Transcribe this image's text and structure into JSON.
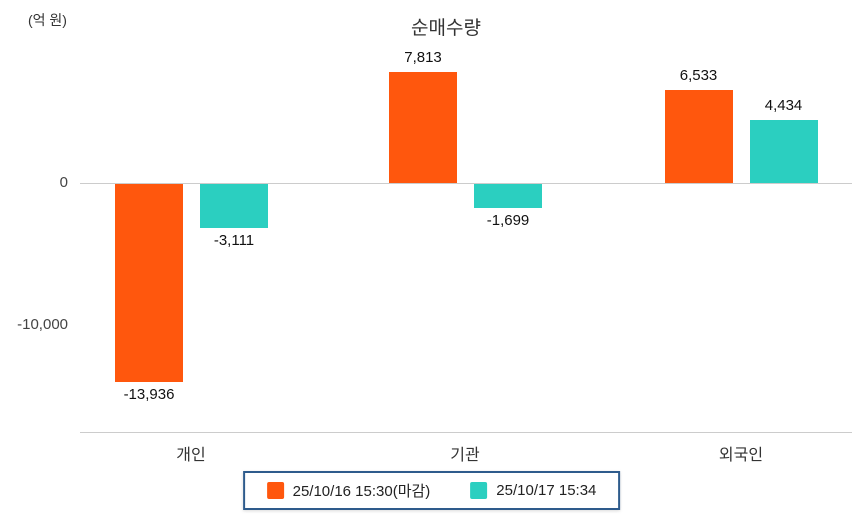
{
  "chart_data": {
    "type": "bar",
    "title": "순매수량",
    "unit_label": "(억 원)",
    "categories": [
      "개인",
      "기관",
      "외국인"
    ],
    "series": [
      {
        "name": "25/10/16 15:30(마감)",
        "color": "#ff570d",
        "values": [
          -13936,
          7813,
          6533
        ],
        "labels": [
          "-13,936",
          "7,813",
          "6,533"
        ]
      },
      {
        "name": "25/10/17 15:34",
        "color": "#2bcfc0",
        "values": [
          -3111,
          -1699,
          4434
        ],
        "labels": [
          "-3,111",
          "-1,699",
          "4,434"
        ]
      }
    ],
    "y_ticks": [
      {
        "value": 0,
        "label": "0"
      },
      {
        "value": -10000,
        "label": "-10,000"
      }
    ],
    "ylim": [
      -16000,
      9500
    ],
    "grid": "zero-line-only",
    "legend_position": "bottom"
  }
}
